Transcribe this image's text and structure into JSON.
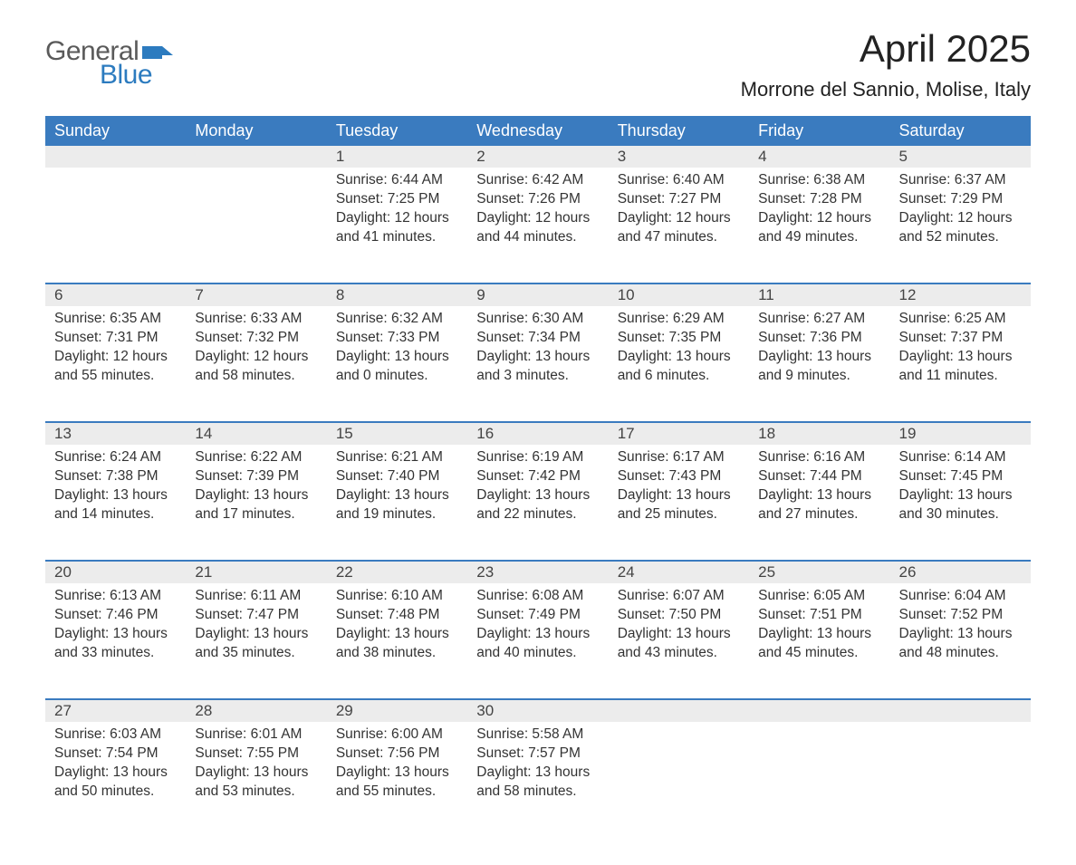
{
  "brand": {
    "word1": "General",
    "word2": "Blue",
    "flag_color": "#2c7bbf"
  },
  "title": "April 2025",
  "location": "Morrone del Sannio, Molise, Italy",
  "colors": {
    "header_bg": "#3a7bbf",
    "header_text": "#ffffff",
    "daynum_bg": "#ececec",
    "row_border": "#3a7bbf",
    "body_text": "#333333",
    "background": "#ffffff"
  },
  "weekdays": [
    "Sunday",
    "Monday",
    "Tuesday",
    "Wednesday",
    "Thursday",
    "Friday",
    "Saturday"
  ],
  "weeks": [
    [
      null,
      null,
      {
        "n": "1",
        "sr": "6:44 AM",
        "ss": "7:25 PM",
        "dl": "12 hours and 41 minutes."
      },
      {
        "n": "2",
        "sr": "6:42 AM",
        "ss": "7:26 PM",
        "dl": "12 hours and 44 minutes."
      },
      {
        "n": "3",
        "sr": "6:40 AM",
        "ss": "7:27 PM",
        "dl": "12 hours and 47 minutes."
      },
      {
        "n": "4",
        "sr": "6:38 AM",
        "ss": "7:28 PM",
        "dl": "12 hours and 49 minutes."
      },
      {
        "n": "5",
        "sr": "6:37 AM",
        "ss": "7:29 PM",
        "dl": "12 hours and 52 minutes."
      }
    ],
    [
      {
        "n": "6",
        "sr": "6:35 AM",
        "ss": "7:31 PM",
        "dl": "12 hours and 55 minutes."
      },
      {
        "n": "7",
        "sr": "6:33 AM",
        "ss": "7:32 PM",
        "dl": "12 hours and 58 minutes."
      },
      {
        "n": "8",
        "sr": "6:32 AM",
        "ss": "7:33 PM",
        "dl": "13 hours and 0 minutes."
      },
      {
        "n": "9",
        "sr": "6:30 AM",
        "ss": "7:34 PM",
        "dl": "13 hours and 3 minutes."
      },
      {
        "n": "10",
        "sr": "6:29 AM",
        "ss": "7:35 PM",
        "dl": "13 hours and 6 minutes."
      },
      {
        "n": "11",
        "sr": "6:27 AM",
        "ss": "7:36 PM",
        "dl": "13 hours and 9 minutes."
      },
      {
        "n": "12",
        "sr": "6:25 AM",
        "ss": "7:37 PM",
        "dl": "13 hours and 11 minutes."
      }
    ],
    [
      {
        "n": "13",
        "sr": "6:24 AM",
        "ss": "7:38 PM",
        "dl": "13 hours and 14 minutes."
      },
      {
        "n": "14",
        "sr": "6:22 AM",
        "ss": "7:39 PM",
        "dl": "13 hours and 17 minutes."
      },
      {
        "n": "15",
        "sr": "6:21 AM",
        "ss": "7:40 PM",
        "dl": "13 hours and 19 minutes."
      },
      {
        "n": "16",
        "sr": "6:19 AM",
        "ss": "7:42 PM",
        "dl": "13 hours and 22 minutes."
      },
      {
        "n": "17",
        "sr": "6:17 AM",
        "ss": "7:43 PM",
        "dl": "13 hours and 25 minutes."
      },
      {
        "n": "18",
        "sr": "6:16 AM",
        "ss": "7:44 PM",
        "dl": "13 hours and 27 minutes."
      },
      {
        "n": "19",
        "sr": "6:14 AM",
        "ss": "7:45 PM",
        "dl": "13 hours and 30 minutes."
      }
    ],
    [
      {
        "n": "20",
        "sr": "6:13 AM",
        "ss": "7:46 PM",
        "dl": "13 hours and 33 minutes."
      },
      {
        "n": "21",
        "sr": "6:11 AM",
        "ss": "7:47 PM",
        "dl": "13 hours and 35 minutes."
      },
      {
        "n": "22",
        "sr": "6:10 AM",
        "ss": "7:48 PM",
        "dl": "13 hours and 38 minutes."
      },
      {
        "n": "23",
        "sr": "6:08 AM",
        "ss": "7:49 PM",
        "dl": "13 hours and 40 minutes."
      },
      {
        "n": "24",
        "sr": "6:07 AM",
        "ss": "7:50 PM",
        "dl": "13 hours and 43 minutes."
      },
      {
        "n": "25",
        "sr": "6:05 AM",
        "ss": "7:51 PM",
        "dl": "13 hours and 45 minutes."
      },
      {
        "n": "26",
        "sr": "6:04 AM",
        "ss": "7:52 PM",
        "dl": "13 hours and 48 minutes."
      }
    ],
    [
      {
        "n": "27",
        "sr": "6:03 AM",
        "ss": "7:54 PM",
        "dl": "13 hours and 50 minutes."
      },
      {
        "n": "28",
        "sr": "6:01 AM",
        "ss": "7:55 PM",
        "dl": "13 hours and 53 minutes."
      },
      {
        "n": "29",
        "sr": "6:00 AM",
        "ss": "7:56 PM",
        "dl": "13 hours and 55 minutes."
      },
      {
        "n": "30",
        "sr": "5:58 AM",
        "ss": "7:57 PM",
        "dl": "13 hours and 58 minutes."
      },
      null,
      null,
      null
    ]
  ],
  "labels": {
    "sunrise": "Sunrise: ",
    "sunset": "Sunset: ",
    "daylight": "Daylight: "
  }
}
